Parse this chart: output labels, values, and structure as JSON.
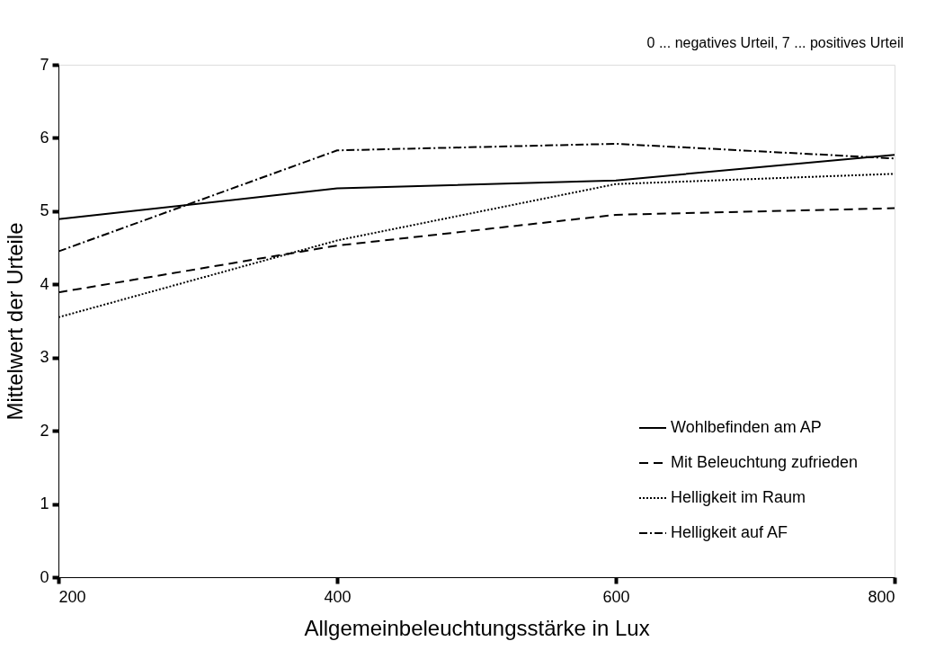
{
  "chart_data": {
    "type": "line",
    "xlabel": "Allgemeinbeleuchtungsstärke in Lux",
    "ylabel": "Mittelwert der Urteile",
    "annotations": [
      "0 ... negatives Urteil, 7 ... positives Urteil"
    ],
    "x": [
      200,
      400,
      600,
      800
    ],
    "xlim": [
      200,
      800
    ],
    "xticks": [
      200,
      400,
      600,
      800
    ],
    "ylim": [
      0,
      7
    ],
    "yticks": [
      0,
      1,
      2,
      3,
      4,
      5,
      6,
      7
    ],
    "grid": false,
    "legend": "bottom right",
    "marker": "none",
    "series": [
      {
        "name": "Wohlbefinden am AP",
        "color": "#000000",
        "line_style": "solid",
        "values": [
          4.89,
          5.31,
          5.42,
          5.77
        ]
      },
      {
        "name": "Mit Beleuchtung zufrieden",
        "color": "#000000",
        "line_style": "dashed",
        "values": [
          3.89,
          4.53,
          4.95,
          5.04
        ]
      },
      {
        "name": "Helligkeit im Raum",
        "color": "#000000",
        "line_style": "dotted",
        "values": [
          3.55,
          4.6,
          5.37,
          5.51
        ]
      },
      {
        "name": "Helligkeit auf AF",
        "color": "#000000",
        "line_style": "dashdot",
        "values": [
          4.45,
          5.83,
          5.92,
          5.72
        ]
      }
    ]
  }
}
